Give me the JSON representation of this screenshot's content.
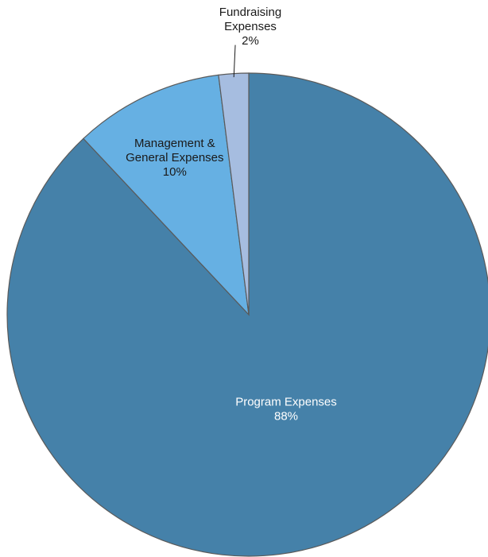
{
  "chart_data": {
    "type": "pie",
    "start_angle_deg": 0,
    "direction": "clockwise",
    "slices": [
      {
        "label_lines": [
          "Program Expenses"
        ],
        "value": 88,
        "value_text": "88%",
        "color": "#4581a9",
        "label_color": "#ffffff",
        "label_placement": "inside"
      },
      {
        "label_lines": [
          "Management &",
          "General Expenses"
        ],
        "value": 10,
        "value_text": "10%",
        "color": "#66b0e3",
        "label_color": "#1a1a1a",
        "label_placement": "inside"
      },
      {
        "label_lines": [
          "Fundraising",
          "Expenses"
        ],
        "value": 2,
        "value_text": "2%",
        "color": "#a6bde0",
        "label_color": "#1a1a1a",
        "label_placement": "outside-leader"
      }
    ]
  }
}
